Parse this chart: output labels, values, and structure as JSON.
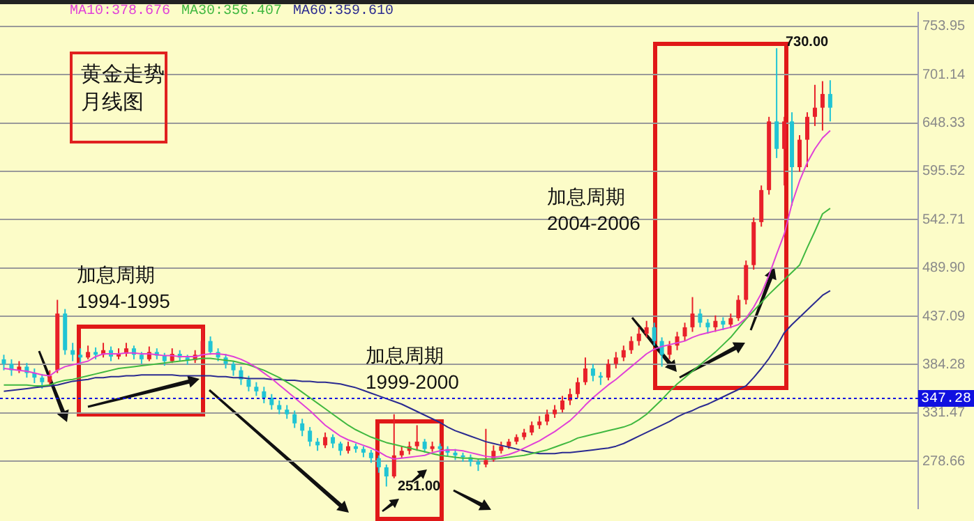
{
  "chart_data": {
    "type": "candlestick",
    "title": "黄金走势月线图",
    "categories": [
      null,
      null,
      null,
      null,
      null,
      null,
      null,
      null,
      null,
      null,
      null,
      null,
      null,
      null,
      null,
      null,
      null,
      null,
      null,
      null,
      null,
      null,
      null,
      null,
      null,
      null,
      null,
      null,
      null,
      null,
      null,
      null,
      null,
      null,
      null,
      null,
      null,
      null,
      null,
      null,
      null,
      null,
      null,
      null,
      null,
      null,
      null,
      null,
      null,
      null,
      null,
      null,
      null,
      null,
      null,
      null,
      null,
      null,
      null,
      null,
      null,
      null,
      null,
      null,
      null,
      null,
      null,
      null,
      null,
      null,
      null,
      null,
      null,
      null,
      null,
      null,
      null,
      null,
      null,
      null,
      null,
      null,
      null,
      null,
      null,
      null,
      null,
      null,
      null,
      null,
      null,
      null,
      null,
      null,
      null,
      null,
      null,
      null,
      null,
      null,
      null,
      null,
      null,
      null,
      null,
      null,
      null,
      null,
      null,
      null,
      null,
      null,
      null,
      null,
      null,
      null,
      null,
      null,
      null,
      null
    ],
    "ohlc": [
      [
        390,
        395,
        378,
        385
      ],
      [
        385,
        390,
        372,
        378
      ],
      [
        378,
        388,
        375,
        382
      ],
      [
        382,
        386,
        370,
        375
      ],
      [
        375,
        380,
        364,
        370
      ],
      [
        370,
        374,
        358,
        365
      ],
      [
        365,
        378,
        362,
        372
      ],
      [
        378,
        455,
        375,
        440
      ],
      [
        440,
        445,
        395,
        400
      ],
      [
        400,
        408,
        388,
        395
      ],
      [
        395,
        402,
        385,
        392
      ],
      [
        392,
        405,
        390,
        398
      ],
      [
        398,
        403,
        390,
        395
      ],
      [
        395,
        408,
        392,
        400
      ],
      [
        400,
        404,
        388,
        393
      ],
      [
        393,
        402,
        390,
        396
      ],
      [
        396,
        408,
        393,
        402
      ],
      [
        402,
        405,
        390,
        395
      ],
      [
        395,
        398,
        385,
        390
      ],
      [
        390,
        404,
        388,
        398
      ],
      [
        398,
        402,
        390,
        394
      ],
      [
        394,
        397,
        383,
        388
      ],
      [
        388,
        402,
        386,
        396
      ],
      [
        396,
        400,
        388,
        392
      ],
      [
        392,
        395,
        384,
        389
      ],
      [
        389,
        400,
        386,
        395
      ],
      [
        395,
        425,
        392,
        410
      ],
      [
        410,
        415,
        395,
        398
      ],
      [
        398,
        402,
        388,
        392
      ],
      [
        392,
        396,
        380,
        385
      ],
      [
        385,
        388,
        372,
        378
      ],
      [
        378,
        382,
        362,
        368
      ],
      [
        368,
        372,
        355,
        360
      ],
      [
        360,
        365,
        350,
        355
      ],
      [
        355,
        360,
        342,
        348
      ],
      [
        348,
        352,
        335,
        340
      ],
      [
        340,
        345,
        330,
        335
      ],
      [
        335,
        340,
        325,
        330
      ],
      [
        330,
        334,
        315,
        320
      ],
      [
        320,
        325,
        306,
        312
      ],
      [
        312,
        316,
        295,
        300
      ],
      [
        300,
        304,
        290,
        296
      ],
      [
        296,
        310,
        293,
        305
      ],
      [
        305,
        308,
        293,
        298
      ],
      [
        298,
        300,
        285,
        290
      ],
      [
        290,
        300,
        287,
        295
      ],
      [
        295,
        298,
        288,
        292
      ],
      [
        292,
        295,
        283,
        288
      ],
      [
        288,
        291,
        277,
        282
      ],
      [
        282,
        285,
        266,
        272
      ],
      [
        272,
        275,
        251,
        262
      ],
      [
        262,
        330,
        260,
        285
      ],
      [
        285,
        295,
        282,
        290
      ],
      [
        290,
        300,
        286,
        295
      ],
      [
        295,
        318,
        290,
        300
      ],
      [
        300,
        303,
        288,
        292
      ],
      [
        292,
        300,
        289,
        295
      ],
      [
        295,
        298,
        287,
        292
      ],
      [
        292,
        295,
        284,
        288
      ],
      [
        288,
        292,
        280,
        285
      ],
      [
        285,
        288,
        278,
        283
      ],
      [
        283,
        286,
        273,
        278
      ],
      [
        278,
        281,
        268,
        275
      ],
      [
        275,
        314,
        272,
        280
      ],
      [
        280,
        296,
        278,
        290
      ],
      [
        290,
        300,
        287,
        295
      ],
      [
        295,
        303,
        292,
        300
      ],
      [
        300,
        308,
        297,
        305
      ],
      [
        305,
        314,
        302,
        310
      ],
      [
        310,
        322,
        307,
        318
      ],
      [
        318,
        328,
        314,
        322
      ],
      [
        322,
        335,
        318,
        330
      ],
      [
        330,
        340,
        326,
        335
      ],
      [
        335,
        350,
        332,
        345
      ],
      [
        345,
        358,
        340,
        352
      ],
      [
        352,
        370,
        348,
        365
      ],
      [
        365,
        392,
        362,
        380
      ],
      [
        380,
        385,
        366,
        372
      ],
      [
        372,
        376,
        362,
        370
      ],
      [
        370,
        390,
        367,
        385
      ],
      [
        385,
        398,
        380,
        392
      ],
      [
        392,
        405,
        388,
        400
      ],
      [
        400,
        415,
        396,
        410
      ],
      [
        410,
        425,
        405,
        418
      ],
      [
        418,
        432,
        414,
        425
      ],
      [
        425,
        430,
        405,
        410
      ],
      [
        410,
        414,
        382,
        395
      ],
      [
        395,
        410,
        390,
        405
      ],
      [
        405,
        420,
        400,
        415
      ],
      [
        415,
        430,
        410,
        425
      ],
      [
        425,
        458,
        420,
        440
      ],
      [
        440,
        445,
        425,
        430
      ],
      [
        430,
        434,
        418,
        425
      ],
      [
        425,
        438,
        420,
        432
      ],
      [
        432,
        436,
        422,
        428
      ],
      [
        428,
        440,
        424,
        435
      ],
      [
        435,
        460,
        432,
        455
      ],
      [
        455,
        498,
        450,
        493
      ],
      [
        493,
        545,
        488,
        540
      ],
      [
        540,
        580,
        535,
        575
      ],
      [
        575,
        655,
        570,
        650
      ],
      [
        650,
        730,
        610,
        620
      ],
      [
        620,
        655,
        580,
        650
      ],
      [
        650,
        660,
        558,
        600
      ],
      [
        600,
        635,
        595,
        630
      ],
      [
        630,
        660,
        600,
        655
      ],
      [
        655,
        690,
        645,
        665
      ],
      [
        665,
        694,
        640,
        680
      ],
      [
        680,
        695,
        650,
        665
      ],
      null,
      null,
      null,
      null,
      null,
      null,
      null,
      null,
      null,
      null,
      null
    ],
    "series": [
      {
        "type": "line",
        "name": "MA10:378.676",
        "color": "#e040d8",
        "values": [
          380,
          379,
          378,
          377,
          375,
          373,
          372,
          378,
          382,
          384,
          386,
          388,
          393,
          396,
          396,
          396,
          397,
          397,
          396,
          396,
          395,
          394,
          394,
          393,
          393,
          393,
          395,
          396,
          396,
          395,
          393,
          390,
          386,
          381,
          375,
          369,
          362,
          355,
          348,
          341,
          334,
          326,
          318,
          312,
          306,
          302,
          299,
          296,
          293,
          289,
          284,
          281,
          282,
          283,
          284,
          285,
          288,
          290,
          291,
          291,
          290,
          288,
          286,
          284,
          283,
          284,
          286,
          289,
          293,
          297,
          301,
          306,
          311,
          317,
          323,
          331,
          340,
          348,
          355,
          362,
          368,
          375,
          382,
          389,
          396,
          401,
          404,
          406,
          408,
          410,
          414,
          417,
          419,
          421,
          423,
          425,
          428,
          435,
          447,
          462,
          482,
          505,
          527,
          560,
          585,
          605,
          620,
          632,
          640,
          null,
          null,
          null,
          null,
          null,
          null,
          null,
          null,
          null,
          null,
          null
        ]
      },
      {
        "type": "line",
        "name": "MA30:356.407",
        "color": "#40b840",
        "values": [
          362,
          362,
          362,
          362,
          361,
          361,
          362,
          365,
          367,
          368,
          370,
          372,
          374,
          376,
          378,
          380,
          381,
          382,
          383,
          384,
          385,
          386,
          387,
          388,
          389,
          390,
          391,
          391,
          390,
          389,
          388,
          386,
          384,
          381,
          378,
          374,
          370,
          365,
          360,
          354,
          348,
          342,
          336,
          330,
          324,
          318,
          313,
          309,
          305,
          302,
          299,
          297,
          295,
          293,
          291,
          289,
          287,
          285,
          284,
          283,
          282,
          282,
          281,
          281,
          281,
          282,
          283,
          284,
          285,
          287,
          289,
          291,
          294,
          297,
          300,
          304,
          306,
          308,
          310,
          312,
          314,
          316,
          319,
          324,
          330,
          338,
          346,
          355,
          363,
          370,
          377,
          384,
          391,
          398,
          406,
          414,
          424,
          434,
          443,
          452,
          461,
          469,
          477,
          485,
          493,
          512,
          530,
          549,
          555,
          null,
          null,
          null,
          null,
          null,
          null,
          null,
          null,
          null,
          null,
          null
        ]
      },
      {
        "type": "line",
        "name": "MA60:359.610",
        "color": "#2a2a90",
        "values": [
          355,
          356,
          357,
          358,
          359,
          360,
          361,
          362,
          364,
          366,
          367,
          368,
          370,
          370,
          371,
          371,
          372,
          372,
          373,
          373,
          373,
          373,
          373,
          372,
          372,
          372,
          372,
          372,
          371,
          371,
          370,
          370,
          369,
          369,
          369,
          368,
          368,
          367,
          367,
          366,
          366,
          365,
          365,
          364,
          363,
          361,
          359,
          356,
          353,
          350,
          347,
          344,
          341,
          337,
          333,
          329,
          325,
          321,
          316,
          312,
          309,
          306,
          303,
          300,
          298,
          296,
          294,
          292,
          290,
          288,
          287,
          287,
          287,
          288,
          288,
          289,
          290,
          291,
          292,
          293,
          295,
          298,
          302,
          306,
          310,
          314,
          318,
          322,
          327,
          331,
          334,
          338,
          341,
          345,
          349,
          353,
          357,
          361,
          370,
          380,
          391,
          404,
          419,
          428,
          436,
          444,
          452,
          460,
          465,
          null,
          null,
          null,
          null,
          null,
          null,
          null,
          null,
          null,
          null,
          null
        ]
      }
    ],
    "ylim": [
      227,
      769
    ],
    "yticks": [
      753.95,
      701.14,
      648.33,
      595.52,
      542.71,
      {
        "value": 489.9,
        "label": "489.90"
      },
      437.09,
      384.28,
      331.47,
      278.66
    ],
    "ref_lines": [
      {
        "axis": "y",
        "value": 347.28,
        "label": "347.28",
        "color": "#1010e0"
      }
    ],
    "annotations": [
      "加息周期 1994-1995",
      "加息周期 1999-2000",
      "加息周期 2004-2006",
      "730.00",
      "251.00"
    ],
    "grid": "y",
    "legend": "top",
    "marker": "none",
    "tick_labels": "y"
  }
}
